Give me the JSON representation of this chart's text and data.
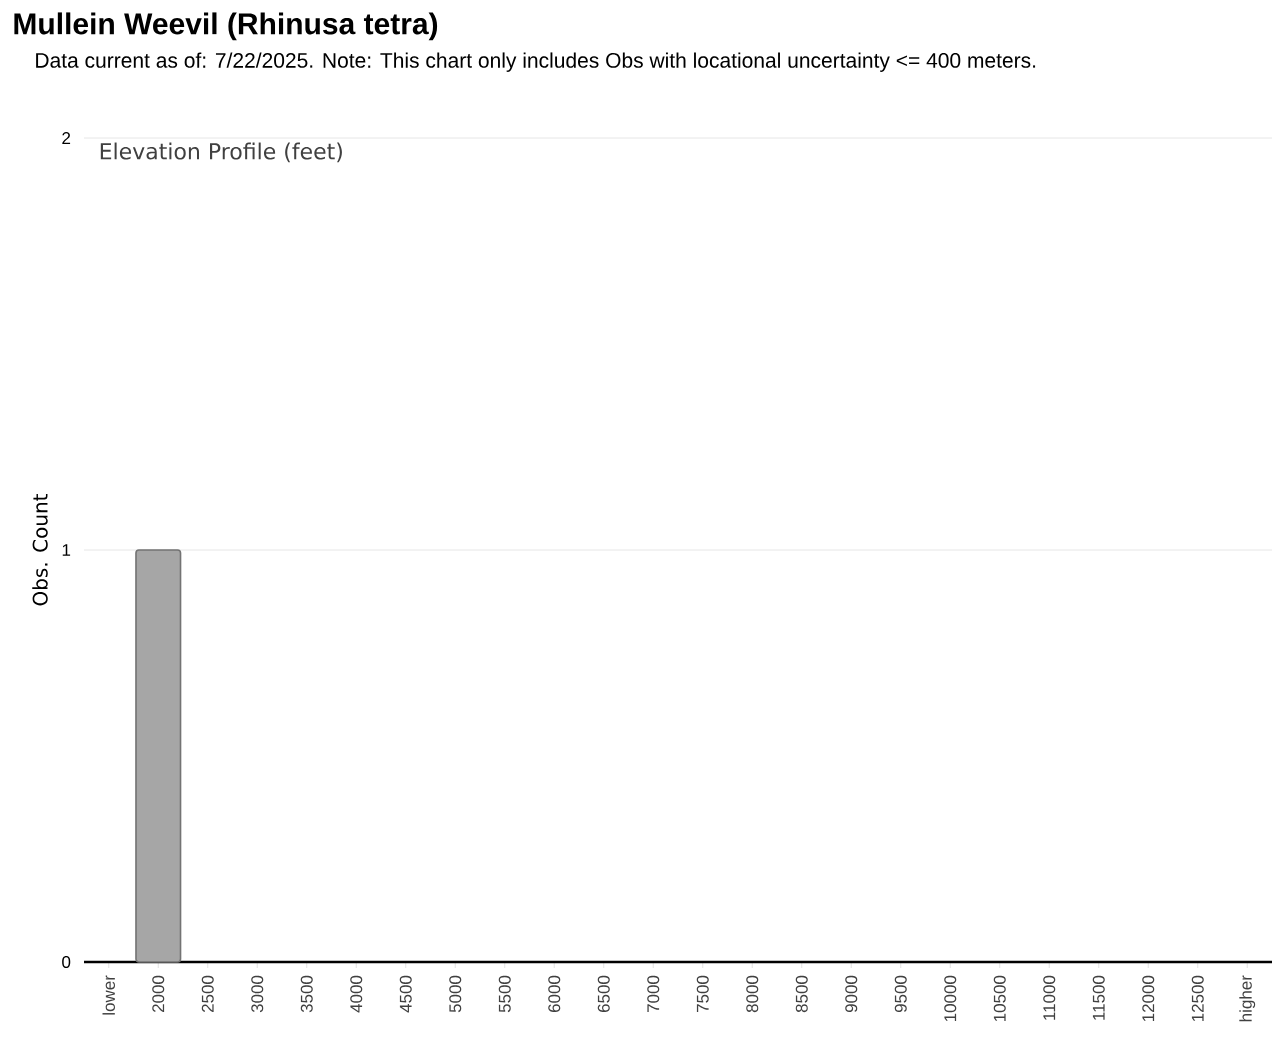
{
  "chart_data": {
    "type": "bar",
    "title": "Mullein Weevil   (Rhinusa tetra)",
    "subtitle": "Data current as of: 7/22/2025.    Note: This chart only includes Obs with locational uncertainty <= 400 meters.",
    "annotations": [
      "Elevation Profile (feet)"
    ],
    "ylabel": "Obs. Count",
    "categories": [
      "lower",
      "2000",
      "2500",
      "3000",
      "3500",
      "4000",
      "4500",
      "5000",
      "5500",
      "6000",
      "6500",
      "7000",
      "7500",
      "8000",
      "8500",
      "9000",
      "9500",
      "10000",
      "10500",
      "11000",
      "11500",
      "12000",
      "12500",
      "higher"
    ],
    "values": [
      0,
      1,
      0,
      0,
      0,
      0,
      0,
      0,
      0,
      0,
      0,
      0,
      0,
      0,
      0,
      0,
      0,
      0,
      0,
      0,
      0,
      0,
      0,
      0
    ],
    "color": "#a6a6a6",
    "ylim": [
      0,
      2
    ],
    "yticks": [
      0,
      1,
      2
    ],
    "grid": "y"
  }
}
